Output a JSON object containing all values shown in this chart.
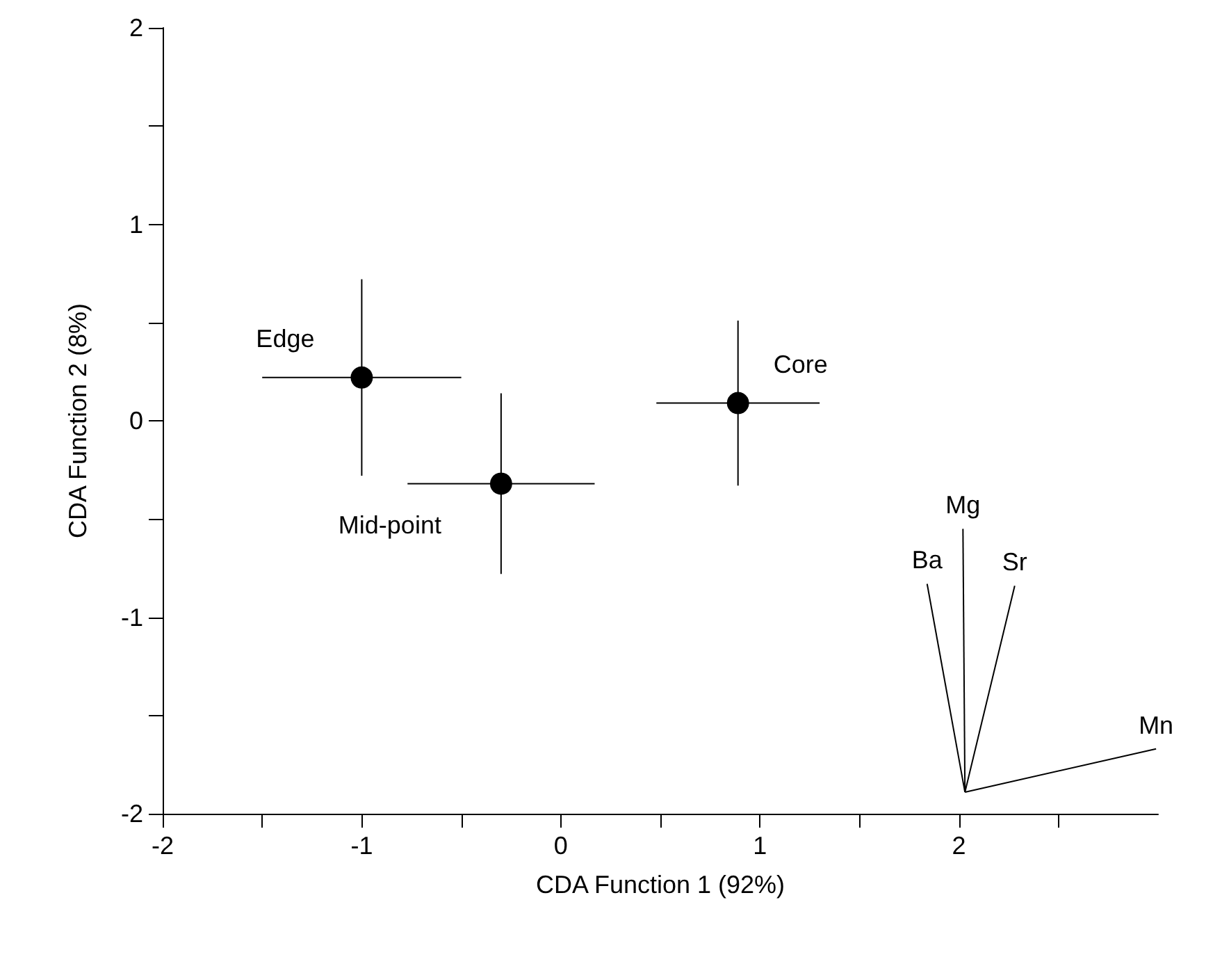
{
  "chart_data": {
    "type": "scatter",
    "xlabel": "CDA Function 1 (92%)",
    "ylabel": "CDA Function 2 (8%)",
    "xlim": [
      -2,
      3
    ],
    "ylim": [
      -2,
      2
    ],
    "xticks": [
      -2,
      {
        "value": -1.5,
        "label": null
      },
      -1,
      {
        "value": -0.5,
        "label": null
      },
      0,
      {
        "value": 0.5,
        "label": null
      },
      1,
      {
        "value": 1.5,
        "label": null
      },
      2,
      {
        "value": 2.5,
        "label": null
      }
    ],
    "yticks": [
      -2,
      {
        "value": -1.5,
        "label": null
      },
      -1,
      {
        "value": -0.5,
        "label": null
      },
      0,
      {
        "value": 0.5,
        "label": null
      },
      1,
      {
        "value": 1.5,
        "label": null
      },
      2
    ],
    "grid": false,
    "legend": false,
    "marker": "circle",
    "series": [
      {
        "name": "Edge",
        "color": "#000000",
        "x": [
          -1.0
        ],
        "values": [
          0.22
        ],
        "xerrors": [
          0.5
        ],
        "errors": [
          0.5
        ]
      },
      {
        "name": "Mid-point",
        "color": "#000000",
        "x": [
          -0.3
        ],
        "values": [
          -0.32
        ],
        "xerrors": [
          0.47
        ],
        "errors": [
          0.46
        ]
      },
      {
        "name": "Core",
        "color": "#000000",
        "x": [
          0.89
        ],
        "values": [
          0.09
        ],
        "xerrors": [
          0.41
        ],
        "errors": [
          0.42
        ]
      },
      {
        "name": "Ba",
        "type": "line",
        "color": "#000000",
        "marker": "none",
        "x": [
          2.03,
          1.84
        ],
        "values": [
          -1.89,
          -0.83
        ]
      },
      {
        "name": "Mg",
        "type": "line",
        "color": "#000000",
        "marker": "none",
        "x": [
          2.03,
          2.02
        ],
        "values": [
          -1.89,
          -0.55
        ]
      },
      {
        "name": "Sr",
        "type": "line",
        "color": "#000000",
        "marker": "none",
        "x": [
          2.03,
          2.28
        ],
        "values": [
          -1.89,
          -0.84
        ]
      },
      {
        "name": "Mn",
        "type": "line",
        "color": "#000000",
        "marker": "none",
        "x": [
          2.03,
          2.99
        ],
        "values": [
          -1.89,
          -1.67
        ]
      }
    ]
  }
}
